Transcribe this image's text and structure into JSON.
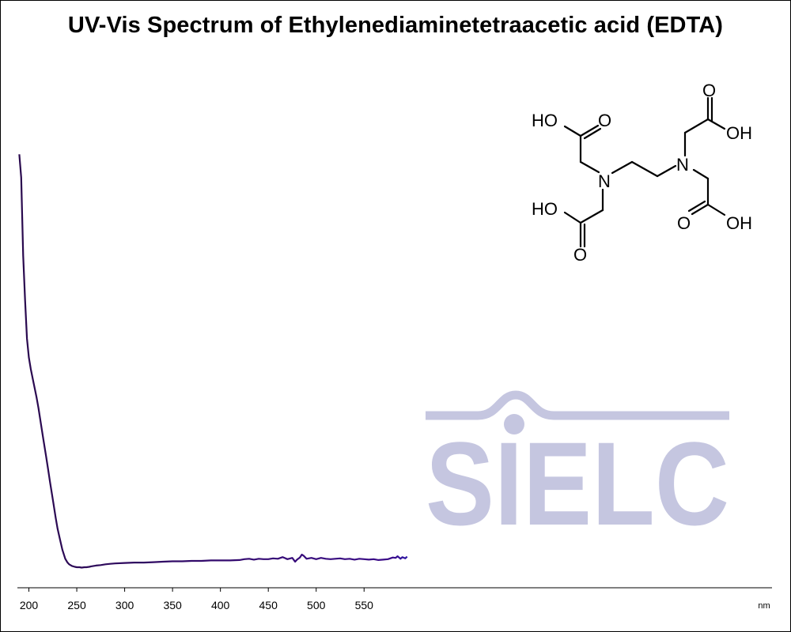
{
  "chart_data": {
    "type": "line",
    "title": "UV-Vis Spectrum of Ethylenediaminetetraacetic acid (EDTA)",
    "xlabel": "nm",
    "ylabel": "",
    "xlim": [
      188,
      976
    ],
    "ylim": [
      0,
      1
    ],
    "x_ticks": [
      200,
      250,
      300,
      350,
      400,
      450,
      500,
      550
    ],
    "x_tick_labels": [
      "200",
      "250",
      "300",
      "350",
      "400",
      "450",
      "500",
      "550"
    ],
    "grid": false,
    "legend": "none",
    "line_coloring": "wavelength spectrum gradient (violet to orange)",
    "series": [
      {
        "x": [
          190,
          192,
          194,
          196,
          198,
          200,
          202,
          205,
          208,
          210,
          212,
          215,
          218,
          220,
          222,
          225,
          228,
          230,
          232,
          235,
          238,
          240,
          242,
          245,
          248,
          250,
          253,
          255,
          258,
          260,
          263,
          265,
          270,
          275,
          280,
          285,
          290,
          300,
          310,
          320,
          330,
          340,
          350,
          360,
          370,
          380,
          390,
          400,
          410,
          420,
          425,
          430,
          435,
          440,
          445,
          450,
          455,
          460,
          465,
          468,
          470,
          475,
          478,
          480,
          483,
          485,
          487,
          490,
          495,
          500,
          505,
          510,
          515,
          520,
          525,
          530,
          535,
          540,
          545,
          550,
          555,
          560,
          565,
          570,
          575,
          580,
          583,
          585,
          588,
          590,
          593,
          595
        ],
        "y": [
          0.977,
          0.922,
          0.737,
          0.632,
          0.541,
          0.496,
          0.469,
          0.435,
          0.402,
          0.377,
          0.347,
          0.304,
          0.262,
          0.233,
          0.202,
          0.16,
          0.117,
          0.091,
          0.07,
          0.041,
          0.02,
          0.012,
          0.007,
          0.003,
          0.001,
          0.0,
          0.0,
          -0.001,
          0.0,
          0.0,
          0.001,
          0.002,
          0.004,
          0.005,
          0.007,
          0.008,
          0.009,
          0.01,
          0.011,
          0.011,
          0.012,
          0.013,
          0.014,
          0.014,
          0.015,
          0.015,
          0.016,
          0.016,
          0.016,
          0.017,
          0.019,
          0.02,
          0.018,
          0.02,
          0.019,
          0.019,
          0.021,
          0.02,
          0.024,
          0.021,
          0.019,
          0.022,
          0.013,
          0.018,
          0.023,
          0.03,
          0.027,
          0.02,
          0.022,
          0.019,
          0.022,
          0.02,
          0.019,
          0.02,
          0.021,
          0.019,
          0.02,
          0.018,
          0.02,
          0.019,
          0.018,
          0.019,
          0.017,
          0.018,
          0.019,
          0.023,
          0.022,
          0.026,
          0.02,
          0.024,
          0.021,
          0.025
        ]
      }
    ]
  },
  "logo": {
    "text": "SIELC",
    "color": "#c5c6e0"
  },
  "molecule": {
    "name": "EDTA structure",
    "atoms": {
      "oxygen": "O",
      "hydroxyl": "OH",
      "hydroxyl_left": "HO",
      "nitrogen": "N"
    }
  }
}
